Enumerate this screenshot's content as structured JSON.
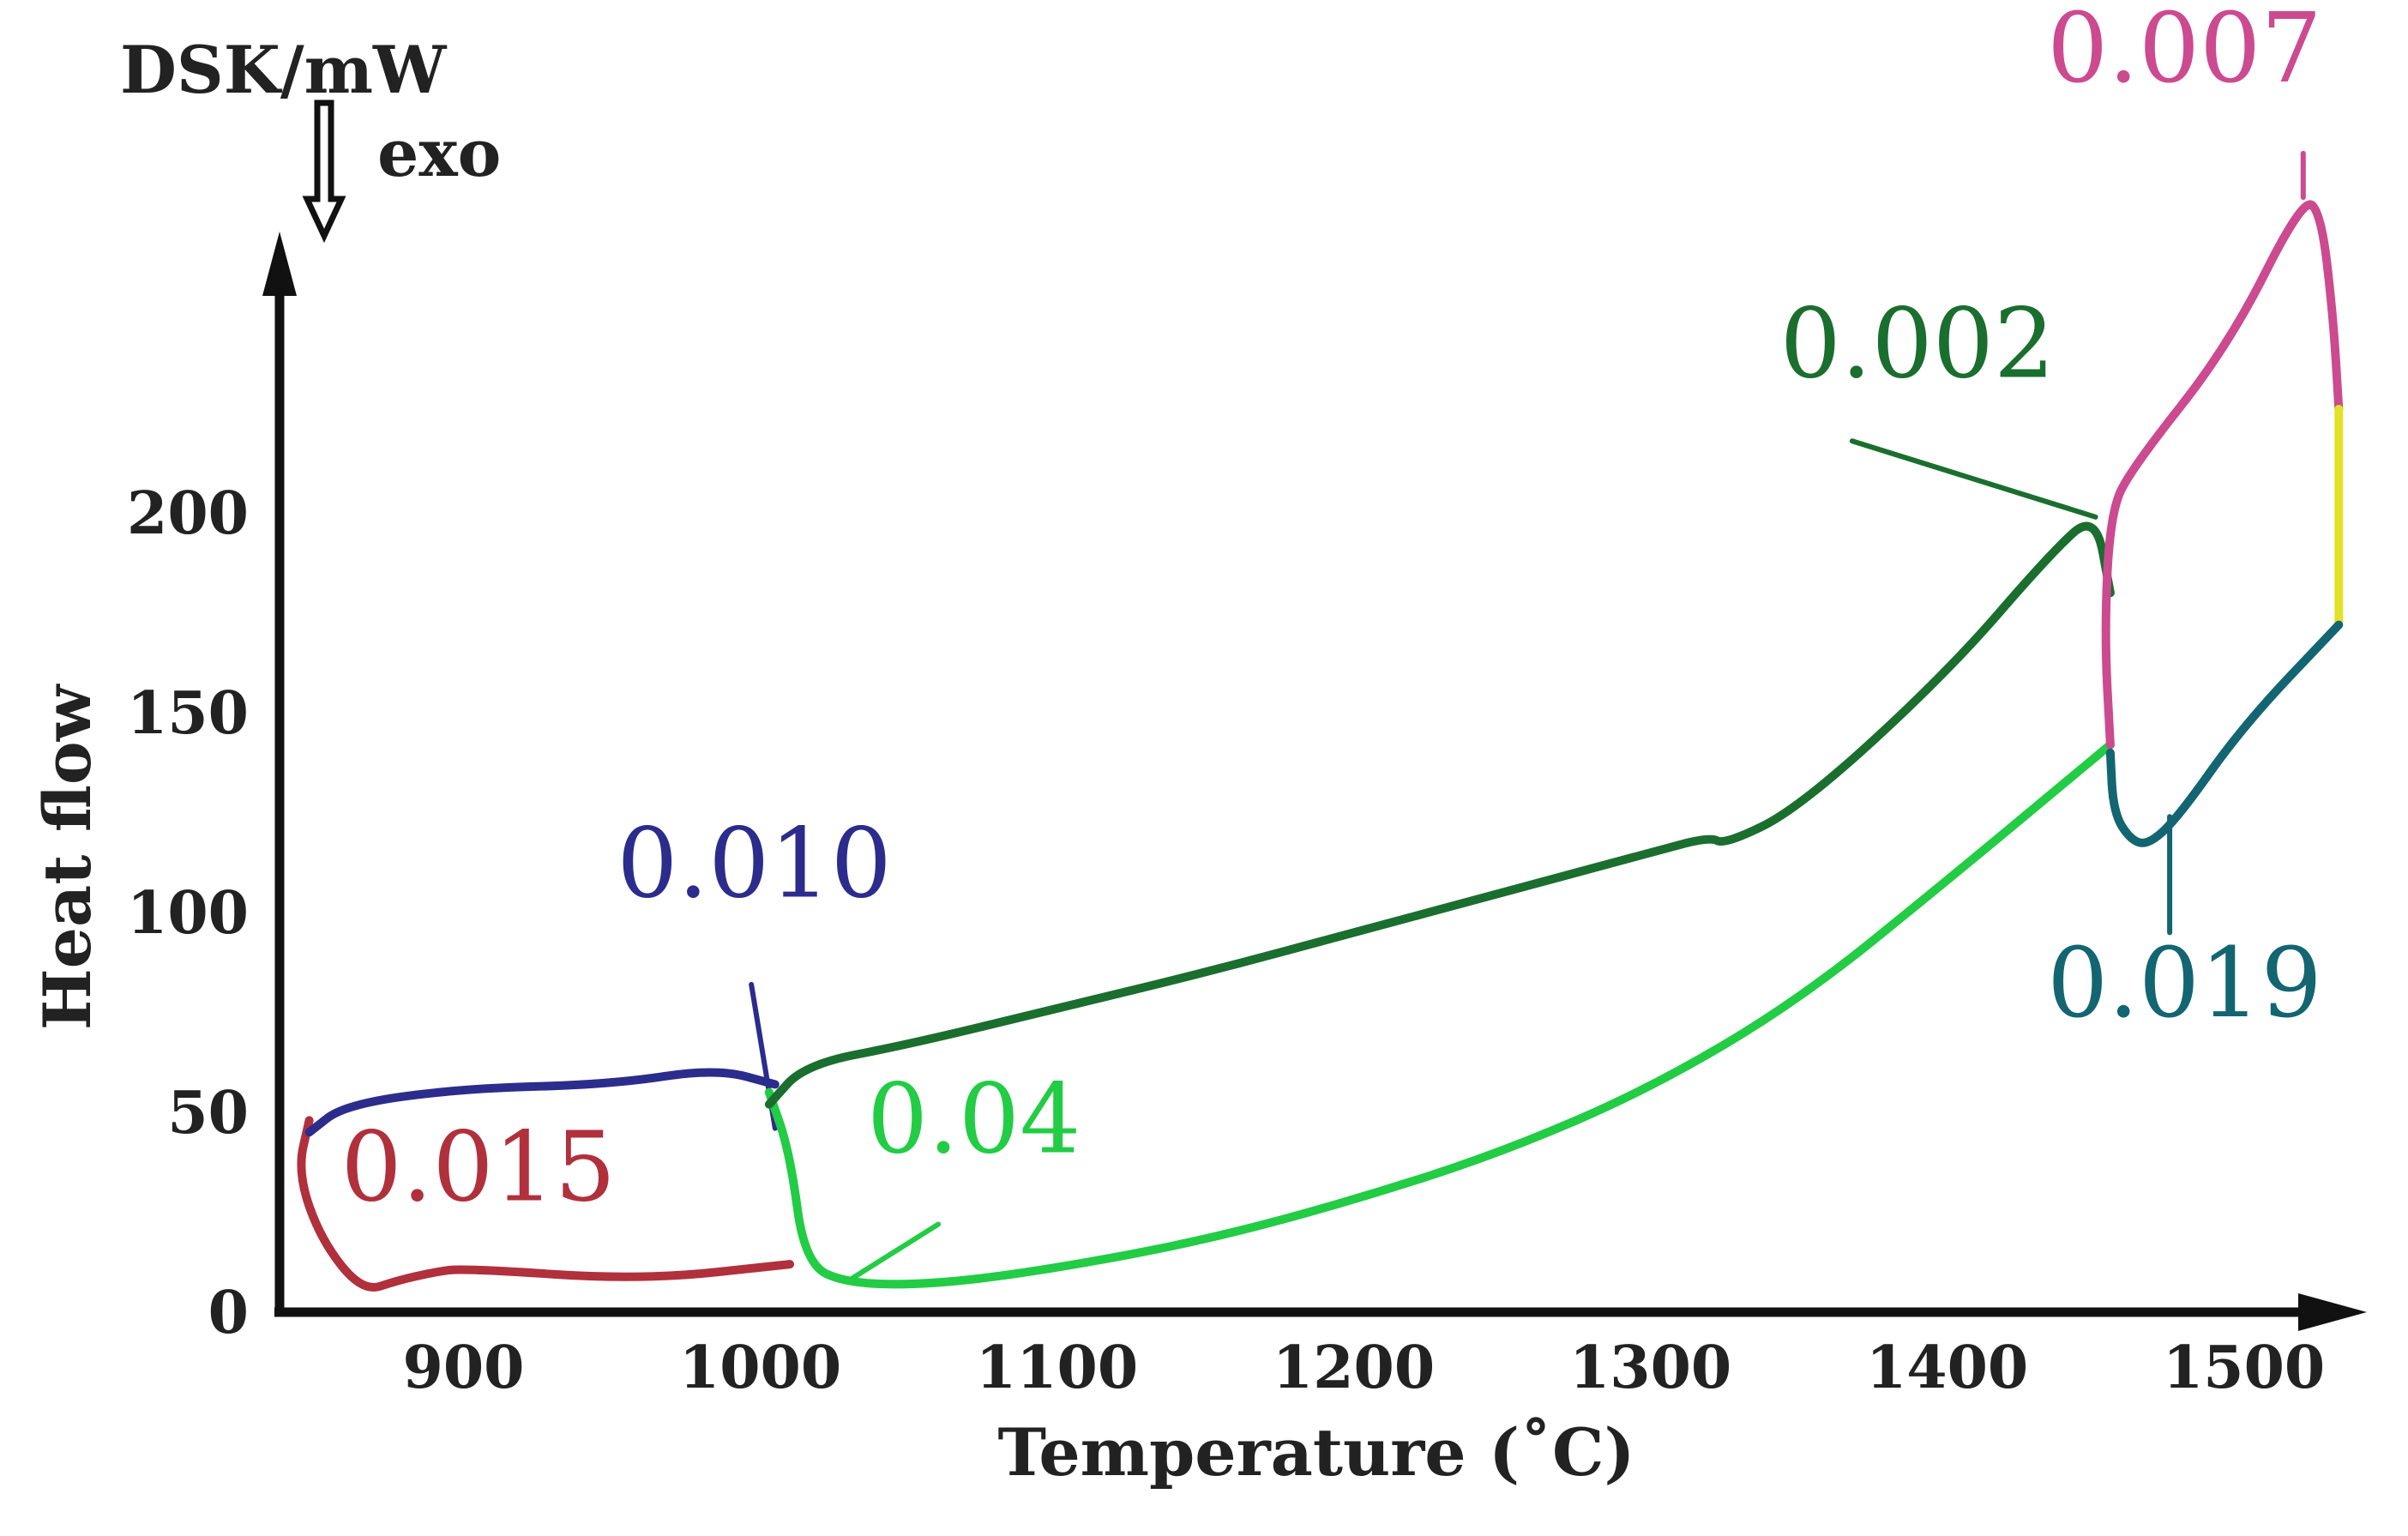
{
  "chart_data": {
    "type": "line",
    "title": "",
    "xlabel": "Temperature (˚C)",
    "ylabel": "Heat flow",
    "y_unit_label": "DSK/mW",
    "direction_label": "exo",
    "xlim": [
      838,
      1540
    ],
    "ylim": [
      0,
      270
    ],
    "x_ticks": [
      900,
      1000,
      1100,
      1200,
      1300,
      1400,
      1500
    ],
    "x_tick_labels": [
      "900",
      "1000",
      "1100",
      "1200",
      "1300",
      "1400",
      "1500"
    ],
    "y_ticks": [
      0,
      50,
      100,
      150,
      200
    ],
    "y_tick_labels": [
      "0",
      "50",
      "100",
      "150",
      "200"
    ],
    "grid": false,
    "series": [
      {
        "name": "0.015",
        "label": "0.015",
        "color": "#b0303c",
        "label_pos": [
          905,
          28
        ],
        "pointer": null,
        "x": [
          848,
          844,
          852,
          866,
          878,
          890,
          900,
          960,
          1010
        ],
        "y": [
          48,
          35,
          18,
          5,
          8,
          10,
          11,
          8,
          12
        ]
      },
      {
        "name": "0.010",
        "label": "0.010",
        "color": "#2b2c8c",
        "label_pos": [
          998,
          104
        ],
        "pointer": [
          [
            997,
            82
          ],
          [
            1005,
            46
          ]
        ],
        "x": [
          848,
          860,
          900,
          950,
          985,
          1005
        ],
        "y": [
          45,
          52,
          56,
          57,
          61,
          57
        ]
      },
      {
        "name": "0.04",
        "label": "0.04",
        "color": "#22cc44",
        "label_pos": [
          1072,
          40
        ],
        "pointer": [
          [
            1060,
            22
          ],
          [
            1030,
            8
          ]
        ],
        "x": [
          1003,
          1010,
          1015,
          1030,
          1060,
          1100,
          1150,
          1200,
          1250,
          1300,
          1350,
          1400,
          1455
        ],
        "y": [
          55,
          40,
          12,
          7,
          7,
          11,
          18,
          28,
          40,
          56,
          78,
          108,
          142
        ]
      },
      {
        "name": "0.002",
        "label": "0.002",
        "color": "#1a6e2e",
        "label_pos": [
          1390,
          234
        ],
        "pointer": [
          [
            1368,
            218
          ],
          [
            1450,
            199
          ]
        ],
        "x": [
          1003,
          1015,
          1050,
          1100,
          1150,
          1200,
          1250,
          1300,
          1320,
          1325,
          1350,
          1400,
          1435,
          1450,
          1455
        ],
        "y": [
          52,
          62,
          67,
          76,
          85,
          95,
          105,
          115,
          119,
          117,
          126,
          160,
          190,
          200,
          180
        ]
      },
      {
        "name": "0.007",
        "label": "0.007",
        "color": "#cc4a90",
        "label_pos": [
          1480,
          308
        ],
        "pointer": [
          [
            1520,
            290
          ],
          [
            1520,
            279
          ]
        ],
        "x": [
          1455,
          1453,
          1455,
          1462,
          1495,
          1520,
          1526,
          1530,
          1532
        ],
        "y": [
          142,
          170,
          200,
          211,
          242,
          279,
          275,
          250,
          226
        ]
      },
      {
        "name": "yellow-segment",
        "label": "",
        "color": "#e2e22a",
        "label_pos": null,
        "pointer": null,
        "x": [
          1532,
          1532
        ],
        "y": [
          226,
          172
        ]
      },
      {
        "name": "0.019",
        "label": "0.019",
        "color": "#136572",
        "label_pos": [
          1480,
          74
        ],
        "pointer": [
          [
            1475,
            95
          ],
          [
            1475,
            124
          ]
        ],
        "x": [
          1455,
          1456,
          1462,
          1468,
          1478,
          1500,
          1532
        ],
        "y": [
          140,
          125,
          118,
          117,
          124,
          147,
          172
        ]
      }
    ]
  }
}
